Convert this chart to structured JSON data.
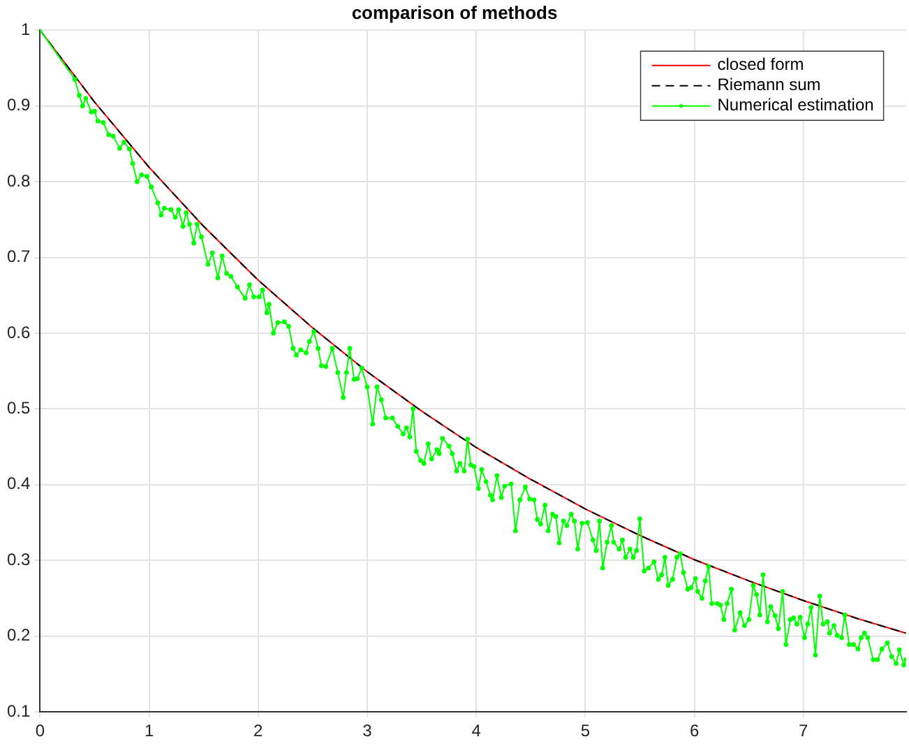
{
  "chart_data": {
    "type": "line",
    "title": "comparison of methods",
    "xlim": [
      0,
      7.94
    ],
    "xticks": [
      0,
      1,
      2,
      3,
      4,
      5,
      6,
      7
    ],
    "ylim": [
      0.1,
      1
    ],
    "yticks": [
      0.1,
      0.2,
      0.3,
      0.4,
      0.5,
      0.6,
      0.7,
      0.8,
      0.9,
      1
    ],
    "grid": true,
    "legend": "top right",
    "series": [
      {
        "name": "closed form",
        "color": "#ff0000",
        "marker": "none",
        "line_style": "solid",
        "x": [
          0,
          0.5,
          1,
          1.5,
          2,
          2.5,
          3,
          3.5,
          4,
          4.5,
          5,
          5.5,
          6,
          6.5,
          7,
          7.5,
          7.94
        ],
        "values": [
          1,
          0.905,
          0.819,
          0.741,
          0.67,
          0.607,
          0.549,
          0.497,
          0.449,
          0.407,
          0.368,
          0.333,
          0.301,
          0.273,
          0.247,
          0.223,
          0.204
        ]
      },
      {
        "name": "Riemann sum",
        "color": "#000000",
        "marker": "none",
        "line_style": "dashed",
        "x": [
          0,
          0.5,
          1,
          1.5,
          2,
          2.5,
          3,
          3.5,
          4,
          4.5,
          5,
          5.5,
          6,
          6.5,
          7,
          7.5,
          7.94
        ],
        "values": [
          1,
          0.905,
          0.819,
          0.741,
          0.67,
          0.607,
          0.549,
          0.497,
          0.449,
          0.407,
          0.368,
          0.333,
          0.301,
          0.273,
          0.247,
          0.223,
          0.204
        ]
      },
      {
        "name": "Numerical estimation",
        "color": "#00ff00",
        "marker": "circle",
        "line_style": "solid",
        "x": [
          0,
          0.32,
          0.36,
          0.39,
          0.42,
          0.47,
          0.5,
          0.53,
          0.58,
          0.63,
          0.67,
          0.73,
          0.77,
          0.82,
          0.85,
          0.89,
          0.93,
          0.98,
          1.02,
          1.08,
          1.11,
          1.14,
          1.2,
          1.24,
          1.27,
          1.31,
          1.34,
          1.37,
          1.41,
          1.44,
          1.48,
          1.54,
          1.58,
          1.63,
          1.67,
          1.71,
          1.75,
          1.81,
          1.88,
          1.92,
          1.96,
          2.01,
          2.04,
          2.08,
          2.1,
          2.14,
          2.18,
          2.24,
          2.28,
          2.32,
          2.35,
          2.39,
          2.44,
          2.47,
          2.51,
          2.55,
          2.58,
          2.62,
          2.68,
          2.73,
          2.78,
          2.81,
          2.84,
          2.88,
          2.91,
          2.95,
          3,
          3.05,
          3.09,
          3.13,
          3.17,
          3.23,
          3.28,
          3.33,
          3.36,
          3.39,
          3.42,
          3.45,
          3.49,
          3.52,
          3.56,
          3.59,
          3.64,
          3.66,
          3.69,
          3.75,
          3.78,
          3.82,
          3.85,
          3.89,
          3.92,
          3.95,
          3.98,
          4.02,
          4.05,
          4.09,
          4.13,
          4.15,
          4.19,
          4.23,
          4.26,
          4.32,
          4.36,
          4.4,
          4.45,
          4.49,
          4.53,
          4.56,
          4.59,
          4.63,
          4.66,
          4.7,
          4.73,
          4.76,
          4.8,
          4.83,
          4.87,
          4.9,
          4.93,
          4.97,
          5.02,
          5.07,
          5.1,
          5.13,
          5.16,
          5.2,
          5.24,
          5.26,
          5.31,
          5.34,
          5.37,
          5.41,
          5.44,
          5.47,
          5.5,
          5.54,
          5.58,
          5.63,
          5.67,
          5.7,
          5.73,
          5.76,
          5.8,
          5.84,
          5.87,
          5.9,
          5.94,
          5.97,
          6.01,
          6.03,
          6.07,
          6.1,
          6.13,
          6.16,
          6.21,
          6.24,
          6.27,
          6.3,
          6.34,
          6.37,
          6.42,
          6.46,
          6.5,
          6.54,
          6.57,
          6.6,
          6.63,
          6.67,
          6.7,
          6.74,
          6.77,
          6.81,
          6.84,
          6.88,
          6.91,
          6.94,
          6.97,
          7.01,
          7.04,
          7.07,
          7.11,
          7.15,
          7.18,
          7.22,
          7.24,
          7.28,
          7.31,
          7.35,
          7.38,
          7.42,
          7.46,
          7.5,
          7.53,
          7.56,
          7.59,
          7.64,
          7.68,
          7.72,
          7.77,
          7.81,
          7.85,
          7.88,
          7.92,
          7.94
        ],
        "values": [
          1,
          0.935,
          0.914,
          0.9,
          0.91,
          0.892,
          0.893,
          0.88,
          0.878,
          0.862,
          0.86,
          0.844,
          0.852,
          0.843,
          0.824,
          0.8,
          0.809,
          0.807,
          0.793,
          0.772,
          0.756,
          0.765,
          0.763,
          0.753,
          0.763,
          0.741,
          0.759,
          0.744,
          0.719,
          0.744,
          0.727,
          0.691,
          0.706,
          0.673,
          0.702,
          0.679,
          0.675,
          0.661,
          0.646,
          0.664,
          0.648,
          0.648,
          0.657,
          0.627,
          0.638,
          0.6,
          0.614,
          0.615,
          0.609,
          0.58,
          0.571,
          0.578,
          0.574,
          0.589,
          0.602,
          0.58,
          0.557,
          0.556,
          0.58,
          0.548,
          0.515,
          0.548,
          0.58,
          0.539,
          0.54,
          0.554,
          0.529,
          0.48,
          0.529,
          0.512,
          0.488,
          0.488,
          0.477,
          0.467,
          0.475,
          0.463,
          0.5,
          0.444,
          0.432,
          0.428,
          0.454,
          0.434,
          0.446,
          0.441,
          0.461,
          0.451,
          0.441,
          0.418,
          0.428,
          0.418,
          0.46,
          0.426,
          0.424,
          0.395,
          0.42,
          0.404,
          0.386,
          0.38,
          0.412,
          0.383,
          0.398,
          0.401,
          0.339,
          0.38,
          0.397,
          0.381,
          0.38,
          0.354,
          0.348,
          0.373,
          0.339,
          0.361,
          0.358,
          0.323,
          0.352,
          0.346,
          0.361,
          0.352,
          0.315,
          0.349,
          0.35,
          0.327,
          0.313,
          0.352,
          0.29,
          0.324,
          0.346,
          0.324,
          0.315,
          0.327,
          0.304,
          0.315,
          0.304,
          0.313,
          0.355,
          0.286,
          0.29,
          0.298,
          0.275,
          0.281,
          0.304,
          0.267,
          0.275,
          0.304,
          0.309,
          0.284,
          0.262,
          0.264,
          0.276,
          0.259,
          0.25,
          0.273,
          0.292,
          0.243,
          0.243,
          0.241,
          0.222,
          0.243,
          0.262,
          0.208,
          0.231,
          0.214,
          0.222,
          0.267,
          0.255,
          0.228,
          0.281,
          0.219,
          0.239,
          0.227,
          0.21,
          0.259,
          0.189,
          0.222,
          0.224,
          0.216,
          0.225,
          0.198,
          0.216,
          0.238,
          0.175,
          0.253,
          0.216,
          0.219,
          0.204,
          0.214,
          0.201,
          0.198,
          0.228,
          0.189,
          0.189,
          0.183,
          0.198,
          0.204,
          0.198,
          0.169,
          0.169,
          0.183,
          0.191,
          0.173,
          0.164,
          0.182,
          0.162,
          0.169
        ]
      }
    ]
  }
}
